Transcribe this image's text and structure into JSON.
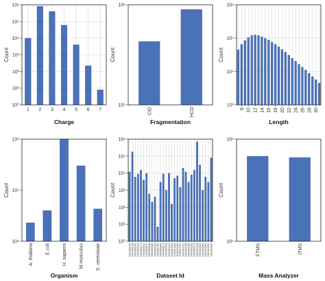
{
  "colors": {
    "bar": "#4a72b8",
    "grid": "#cfcfcf",
    "frame": "#222222"
  },
  "chart_data": [
    {
      "type": "bar",
      "xlabel": "Charge",
      "ylabel": "Count",
      "yscale": "log",
      "ylim": [
        1,
        1000000
      ],
      "yticks": [
        "10⁰",
        "10¹",
        "10²",
        "10³",
        "10⁴",
        "10⁵",
        "10⁶"
      ],
      "categories": [
        "1",
        "2",
        "3",
        "4",
        "5",
        "6",
        "7"
      ],
      "values": [
        10000,
        800000,
        400000,
        60000,
        4000,
        220,
        8
      ],
      "grid": true,
      "tick_rotation": 0
    },
    {
      "type": "bar",
      "xlabel": "Fragmentation",
      "ylabel": "Count",
      "yscale": "log",
      "ylim": [
        100000,
        1000000
      ],
      "yticks": [
        "10⁵",
        "10⁶"
      ],
      "categories": [
        "CID",
        "HCD"
      ],
      "values": [
        430000,
        900000
      ],
      "grid": false,
      "tick_rotation": -90
    },
    {
      "type": "bar",
      "xlabel": "Length",
      "ylabel": "Count",
      "yscale": "log",
      "ylim": [
        1000,
        1000000
      ],
      "yticks": [
        "10³",
        "10⁴",
        "10⁵",
        "10⁶"
      ],
      "x": [
        7,
        8,
        9,
        10,
        11,
        12,
        13,
        14,
        15,
        16,
        17,
        18,
        19,
        20,
        21,
        22,
        23,
        24,
        25,
        26,
        27,
        28,
        29,
        30,
        31
      ],
      "values": [
        45000,
        65000,
        85000,
        105000,
        120000,
        125000,
        120000,
        110000,
        100000,
        88000,
        76000,
        65000,
        55000,
        46000,
        38000,
        31000,
        25000,
        20500,
        16500,
        13500,
        11000,
        8800,
        7000,
        5700,
        4500
      ],
      "xticks": [
        8,
        10,
        12,
        14,
        16,
        18,
        20,
        22,
        24,
        26,
        28,
        30
      ],
      "grid": true,
      "tick_rotation": -90
    },
    {
      "type": "bar",
      "xlabel": "Organism",
      "ylabel": "Count",
      "yscale": "log",
      "ylim": [
        10000,
        1000000
      ],
      "yticks": [
        "10⁴",
        "10⁵",
        "10⁶"
      ],
      "categories": [
        "A. thaliana",
        "E.coli",
        "H. sapiens",
        "M.musculus",
        "S. cerevisiae"
      ],
      "values": [
        23000,
        40000,
        1000000,
        300000,
        43000
      ],
      "grid": false,
      "tick_rotation": -90
    },
    {
      "type": "bar",
      "xlabel": "Dataset Id",
      "ylabel": "Count",
      "yscale": "log",
      "ylim": [
        1,
        1000000
      ],
      "yticks": [
        "10⁰",
        "10¹",
        "10²",
        "10³",
        "10⁴",
        "10⁵",
        "10⁶"
      ],
      "categories": [
        "PXD000195",
        "PXD000218",
        "PXD000245",
        "PXD000336",
        "PXD000474",
        "PXD000542",
        "PXD000572",
        "PXD000638",
        "PXD000688",
        "PXD000696",
        "PXD000780",
        "PXD000804",
        "PXD000873",
        "PXD000938",
        "PXD001015",
        "PXD001091",
        "PXD001128",
        "PXD001183",
        "PXD001192",
        "PXD001222",
        "PXD001245",
        "PXD001250",
        "PXD001252",
        "PXD001379",
        "PXD001468",
        "PXD001520",
        "PXD001561",
        "PXD001565",
        "PXD001591",
        "PXD001640"
      ],
      "values": [
        12000,
        180000,
        6000,
        9000,
        15000,
        4000,
        10000,
        600,
        200,
        400,
        7,
        3000,
        9000,
        1000,
        10000,
        150,
        5000,
        7000,
        1500,
        20000,
        12000,
        3000,
        8000,
        15000,
        700000,
        30000,
        1000,
        6000,
        3000,
        80000
      ],
      "grid": true,
      "tick_rotation": -90
    },
    {
      "type": "bar",
      "xlabel": "Mass Analyzer",
      "ylabel": "Count",
      "yscale": "log",
      "ylim": [
        100000,
        1000000
      ],
      "yticks": [
        "10⁵",
        "10⁶"
      ],
      "categories": [
        "FTMS",
        "ITMS"
      ],
      "values": [
        680000,
        660000
      ],
      "grid": false,
      "tick_rotation": -90
    }
  ]
}
